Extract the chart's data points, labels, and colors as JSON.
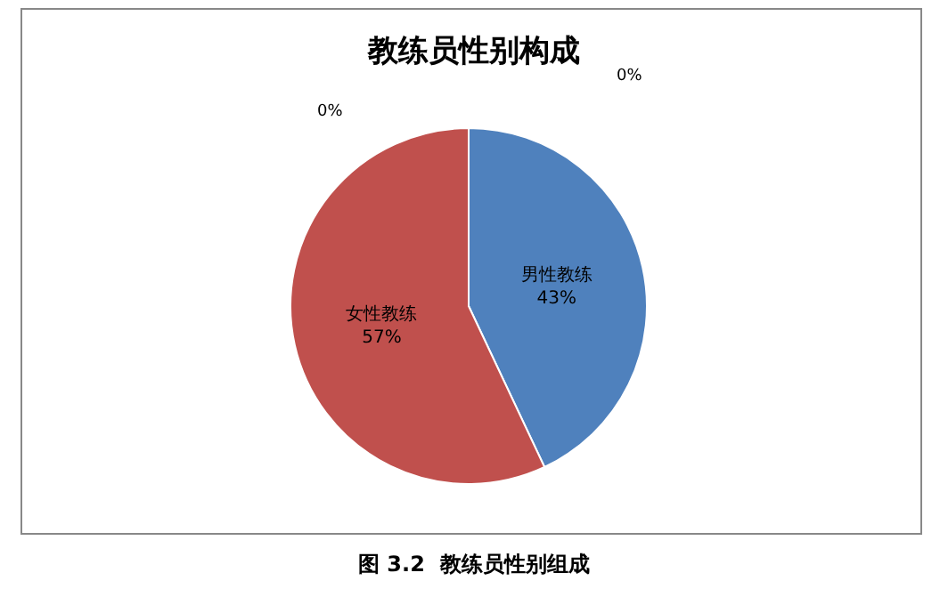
{
  "chart_data": {
    "type": "pie",
    "title": "教练员性别构成",
    "categories": [
      "男性教练",
      "女性教练",
      null,
      null
    ],
    "values": [
      43,
      57,
      0,
      0
    ],
    "value_labels": [
      "43%",
      "57%",
      "0%",
      "0%"
    ],
    "colors": [
      "#4f81bd",
      "#c0504d",
      "#9bbb59",
      "#8064a2"
    ],
    "annotations": [
      "图 3.2  教练员性别组成"
    ],
    "legend": false
  }
}
